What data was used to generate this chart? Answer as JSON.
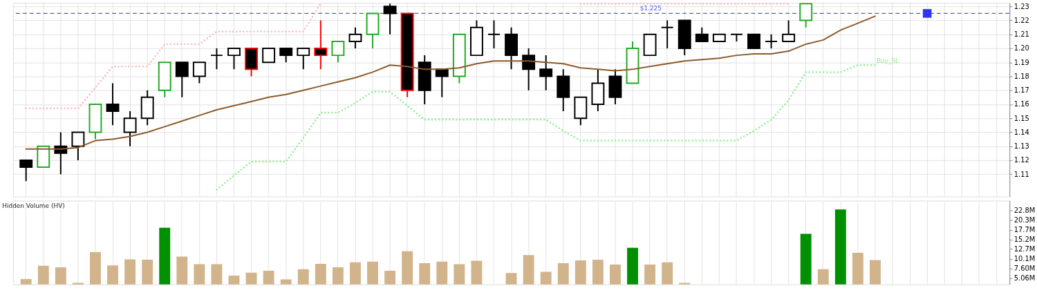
{
  "chart_data": [
    {
      "type": "candlestick",
      "categories": [
        null,
        null,
        null,
        null,
        null,
        null,
        null,
        null,
        null,
        null,
        null,
        null,
        null,
        null,
        null,
        null,
        null,
        null,
        null,
        null,
        null,
        null,
        null,
        null,
        null,
        null,
        null,
        null,
        null,
        null,
        null,
        null,
        null,
        null,
        null,
        null,
        null,
        null,
        null,
        null,
        null,
        null,
        null,
        null,
        null,
        null,
        null,
        null,
        null,
        null,
        null,
        null,
        null,
        null,
        null,
        null,
        null
      ],
      "ohlc": [
        [
          1.12,
          1.12,
          1.105,
          1.115
        ],
        [
          1.115,
          1.13,
          1.115,
          1.13
        ],
        [
          1.13,
          1.14,
          1.11,
          1.125
        ],
        [
          1.13,
          1.14,
          1.12,
          1.14
        ],
        [
          1.14,
          1.16,
          1.135,
          1.16
        ],
        [
          1.16,
          1.175,
          1.145,
          1.155
        ],
        [
          1.14,
          1.155,
          1.13,
          1.15
        ],
        [
          1.15,
          1.17,
          1.145,
          1.165
        ],
        [
          1.17,
          1.19,
          1.165,
          1.19
        ],
        [
          1.19,
          1.19,
          1.165,
          1.18
        ],
        [
          1.18,
          1.19,
          1.175,
          1.19
        ],
        [
          1.195,
          1.2,
          1.185,
          1.195
        ],
        [
          1.195,
          1.2,
          1.185,
          1.2
        ],
        [
          1.2,
          1.2,
          1.18,
          1.185
        ],
        [
          1.19,
          1.2,
          1.19,
          1.2
        ],
        [
          1.2,
          1.2,
          1.19,
          1.195
        ],
        [
          1.195,
          1.2,
          1.185,
          1.2
        ],
        [
          1.2,
          1.22,
          1.185,
          1.195
        ],
        [
          1.195,
          1.205,
          1.19,
          1.205
        ],
        [
          1.205,
          1.215,
          1.2,
          1.21
        ],
        [
          1.21,
          1.225,
          1.2,
          1.225
        ],
        [
          1.23,
          1.232,
          1.21,
          1.225
        ],
        [
          1.225,
          1.225,
          1.165,
          1.17
        ],
        [
          1.19,
          1.195,
          1.16,
          1.17
        ],
        [
          1.185,
          1.185,
          1.165,
          1.18
        ],
        [
          1.18,
          1.21,
          1.175,
          1.21
        ],
        [
          1.195,
          1.22,
          1.195,
          1.215
        ],
        [
          1.21,
          1.22,
          1.2,
          1.21
        ],
        [
          1.21,
          1.215,
          1.185,
          1.195
        ],
        [
          1.195,
          1.2,
          1.17,
          1.185
        ],
        [
          1.185,
          1.195,
          1.17,
          1.18
        ],
        [
          1.18,
          1.185,
          1.155,
          1.165
        ],
        [
          1.15,
          1.165,
          1.145,
          1.165
        ],
        [
          1.16,
          1.185,
          1.155,
          1.175
        ],
        [
          1.18,
          1.185,
          1.16,
          1.165
        ],
        [
          1.175,
          1.205,
          1.175,
          1.2
        ],
        [
          1.195,
          1.21,
          1.195,
          1.21
        ],
        [
          1.215,
          1.22,
          1.2,
          1.215
        ],
        [
          1.22,
          1.22,
          1.195,
          1.2
        ],
        [
          1.21,
          1.215,
          1.205,
          1.205
        ],
        [
          1.205,
          1.21,
          1.205,
          1.21
        ],
        [
          1.21,
          1.21,
          1.205,
          1.21
        ],
        [
          1.21,
          1.21,
          1.2,
          1.2
        ],
        [
          1.205,
          1.21,
          1.2,
          1.205
        ],
        [
          1.205,
          1.22,
          1.205,
          1.21
        ],
        [
          1.22,
          1.232,
          1.215,
          1.232
        ],
        null,
        null,
        null,
        null,
        null,
        null,
        null,
        null,
        null,
        null,
        null
      ],
      "colors": [
        "#000000",
        "#22aa22",
        "#000000",
        "#000000",
        "#22aa22",
        "#000000",
        "#000000",
        "#000000",
        "#22aa22",
        "#000000",
        "#000000",
        "#000000",
        "#000000",
        "#ff0000",
        "#000000",
        "#000000",
        "#000000",
        "#ff0000",
        "#22aa22",
        "#000000",
        "#22aa22",
        "#000000",
        "#ff0000",
        "#000000",
        "#000000",
        "#22aa22",
        "#000000",
        "#000000",
        "#000000",
        "#000000",
        "#000000",
        "#000000",
        "#000000",
        "#000000",
        "#000000",
        "#22aa22",
        "#000000",
        "#000000",
        "#000000",
        "#000000",
        "#000000",
        "#000000",
        "#000000",
        "#000000",
        "#000000",
        "#22aa22",
        null,
        null,
        null,
        null,
        null,
        null,
        null,
        null,
        null,
        null,
        null
      ],
      "series": [
        {
          "type": "line",
          "color": "#8b5a2b",
          "line_style": "solid",
          "values": [
            1.128,
            1.128,
            1.128,
            1.129,
            1.134,
            1.135,
            1.137,
            1.14,
            1.144,
            1.148,
            1.152,
            1.156,
            1.159,
            1.162,
            1.165,
            1.167,
            1.17,
            1.173,
            1.176,
            1.179,
            1.183,
            1.188,
            1.187,
            1.185,
            1.185,
            1.186,
            1.189,
            1.191,
            1.191,
            1.191,
            1.19,
            1.189,
            1.186,
            1.185,
            1.184,
            1.185,
            1.187,
            1.189,
            1.191,
            1.192,
            1.193,
            1.195,
            1.196,
            1.196,
            1.198,
            1.203,
            1.206,
            1.213,
            1.218,
            1.223,
            null,
            null,
            null,
            null,
            null,
            null,
            null
          ]
        },
        {
          "type": "line",
          "color": "#ffb6c1",
          "line_style": "dotted",
          "values": [
            1.157,
            1.157,
            1.157,
            1.157,
            1.172,
            1.187,
            1.187,
            1.187,
            1.203,
            1.203,
            1.203,
            1.212,
            1.212,
            1.212,
            1.212,
            1.212,
            1.212,
            1.232,
            null,
            null,
            null,
            null,
            null,
            null,
            null,
            null,
            null,
            null,
            null,
            null,
            null,
            null,
            1.232,
            1.232,
            1.232,
            1.232,
            1.232,
            1.232,
            1.232,
            1.232,
            1.232,
            1.232,
            1.232,
            1.232,
            1.232,
            null,
            null,
            null,
            null,
            null,
            null,
            null,
            null,
            null,
            null,
            null,
            null
          ]
        },
        {
          "type": "line",
          "name": "Buy_SL",
          "color": "#90ee90",
          "line_style": "dotted",
          "values": [
            null,
            null,
            null,
            null,
            null,
            null,
            null,
            null,
            null,
            null,
            null,
            1.099,
            1.109,
            1.119,
            1.119,
            1.119,
            1.136,
            1.154,
            1.154,
            1.161,
            1.169,
            1.169,
            1.159,
            1.149,
            1.149,
            1.149,
            1.149,
            1.149,
            1.149,
            1.149,
            1.149,
            1.141,
            1.134,
            1.134,
            1.134,
            1.134,
            1.134,
            1.134,
            1.134,
            1.134,
            1.134,
            1.134,
            1.141,
            1.149,
            1.163,
            1.183,
            1.183,
            1.183,
            1.188,
            1.188,
            null,
            null,
            null,
            null,
            null,
            null,
            null
          ]
        },
        {
          "type": "scatter",
          "color": "#3333ff",
          "marker": "square",
          "values": [
            null,
            null,
            null,
            null,
            null,
            null,
            null,
            null,
            null,
            null,
            null,
            null,
            null,
            null,
            null,
            null,
            null,
            null,
            null,
            null,
            null,
            null,
            null,
            null,
            null,
            null,
            null,
            null,
            null,
            null,
            null,
            null,
            null,
            null,
            null,
            null,
            null,
            null,
            null,
            null,
            null,
            null,
            null,
            null,
            null,
            null,
            null,
            null,
            null,
            null,
            null,
            null,
            1.225,
            null,
            null,
            null,
            null
          ]
        }
      ],
      "ref_lines": [
        {
          "axis": "y",
          "value": 1.225,
          "label": "$1.225",
          "color": "#5555ee",
          "line_style": "dashed"
        }
      ],
      "ylim": [
        1.094,
        1.2325
      ],
      "yticks": [
        1.11,
        1.12,
        1.13,
        1.14,
        1.15,
        1.16,
        1.17,
        1.18,
        1.19,
        {
          "value": 1.2,
          "label": "1.20"
        },
        1.21,
        1.22,
        1.23
      ],
      "tick_labels": "y",
      "grid": true
    },
    {
      "type": "bar",
      "title": "Hidden Volume (HV)",
      "categories": [
        null,
        null,
        null,
        null,
        null,
        null,
        null,
        null,
        null,
        null,
        null,
        null,
        null,
        null,
        null,
        null,
        null,
        null,
        null,
        null,
        null,
        null,
        null,
        null,
        null,
        null,
        null,
        null,
        null,
        null,
        null,
        null,
        null,
        null,
        null,
        null,
        null,
        null,
        null,
        null,
        null,
        null,
        null,
        null,
        null,
        null,
        null,
        null,
        null,
        null,
        null,
        null,
        null,
        null,
        null,
        null,
        null
      ],
      "values": [
        4.8,
        8.3,
        7.9,
        3.8,
        11.9,
        8.4,
        10.0,
        9.9,
        18.3,
        10.7,
        8.7,
        8.7,
        5.7,
        6.5,
        7.0,
        4.7,
        7.4,
        8.8,
        7.9,
        9.2,
        9.4,
        7.0,
        12.1,
        9.0,
        9.4,
        8.7,
        9.6,
        null,
        6.4,
        11.1,
        6.7,
        9.0,
        9.7,
        9.9,
        8.6,
        13.0,
        8.6,
        9.2,
        3.8,
        null,
        null,
        null,
        null,
        null,
        null,
        16.7,
        7.4,
        23.1,
        11.7,
        9.8,
        null,
        null,
        null,
        null,
        null,
        null,
        null
      ],
      "colors": [
        "#d2b48c",
        "#d2b48c",
        "#d2b48c",
        "#d2b48c",
        "#d2b48c",
        "#d2b48c",
        "#d2b48c",
        "#d2b48c",
        "#009000",
        "#d2b48c",
        "#d2b48c",
        "#d2b48c",
        "#d2b48c",
        "#d2b48c",
        "#d2b48c",
        "#d2b48c",
        "#d2b48c",
        "#d2b48c",
        "#d2b48c",
        "#d2b48c",
        "#d2b48c",
        "#d2b48c",
        "#d2b48c",
        "#d2b48c",
        "#d2b48c",
        "#d2b48c",
        "#d2b48c",
        null,
        "#d2b48c",
        "#d2b48c",
        "#d2b48c",
        "#d2b48c",
        "#d2b48c",
        "#d2b48c",
        "#d2b48c",
        "#009000",
        "#d2b48c",
        "#d2b48c",
        "#d2b48c",
        null,
        null,
        null,
        null,
        null,
        null,
        "#009000",
        "#d2b48c",
        "#009000",
        "#d2b48c",
        "#d2b48c",
        null,
        null,
        null,
        null,
        null,
        null,
        null
      ],
      "ylim": [
        3.4,
        25.4
      ],
      "yticks": [
        {
          "value": 5.06,
          "label": "5.06M"
        },
        {
          "value": 7.6,
          "label": "7.60M"
        },
        {
          "value": 10.1,
          "label": "10.1M"
        },
        {
          "value": 12.7,
          "label": "12.7M"
        },
        {
          "value": 15.2,
          "label": "15.2M"
        },
        {
          "value": 17.7,
          "label": "17.7M"
        },
        {
          "value": 20.3,
          "label": "20.3M"
        },
        {
          "value": 22.8,
          "label": "22.8M"
        }
      ],
      "tick_labels": "y",
      "grid": "x"
    }
  ]
}
